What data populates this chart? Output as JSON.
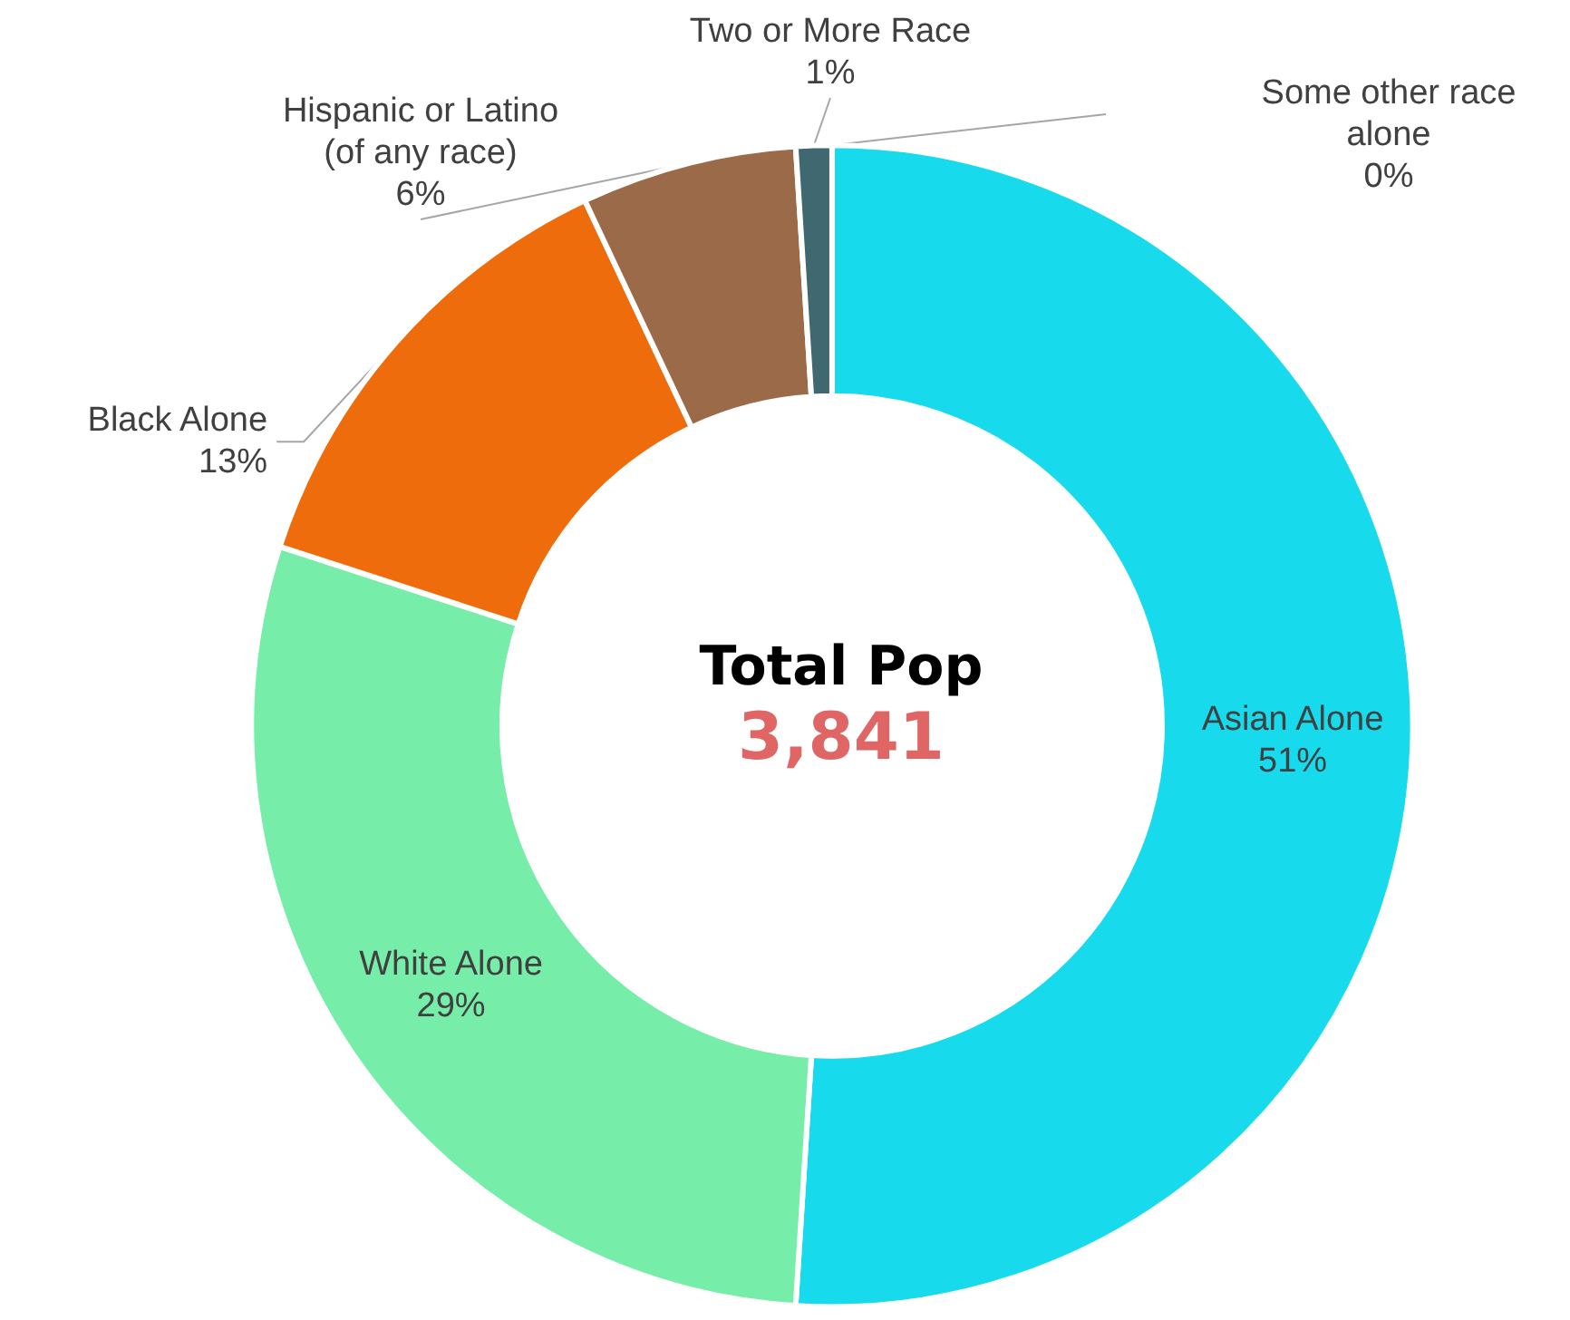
{
  "chart_data": {
    "type": "donut",
    "title": "Total Pop",
    "subtitle": "3,841",
    "categories": [
      "Asian Alone",
      "White Alone",
      "Black Alone",
      "Hispanic or Latino\n(of any race)",
      "Two or More Race",
      "Some other race\nalone"
    ],
    "values": [
      51,
      29,
      13,
      6,
      1,
      0
    ],
    "colors": [
      "#17dbec",
      "#76eda8",
      "#ef6c0c",
      "#9b6a48",
      "#3f6870",
      "#a6a6a6"
    ],
    "value_labels": [
      "51%",
      "29%",
      "13%",
      "6%",
      "1%",
      "0%"
    ],
    "legend": false
  }
}
